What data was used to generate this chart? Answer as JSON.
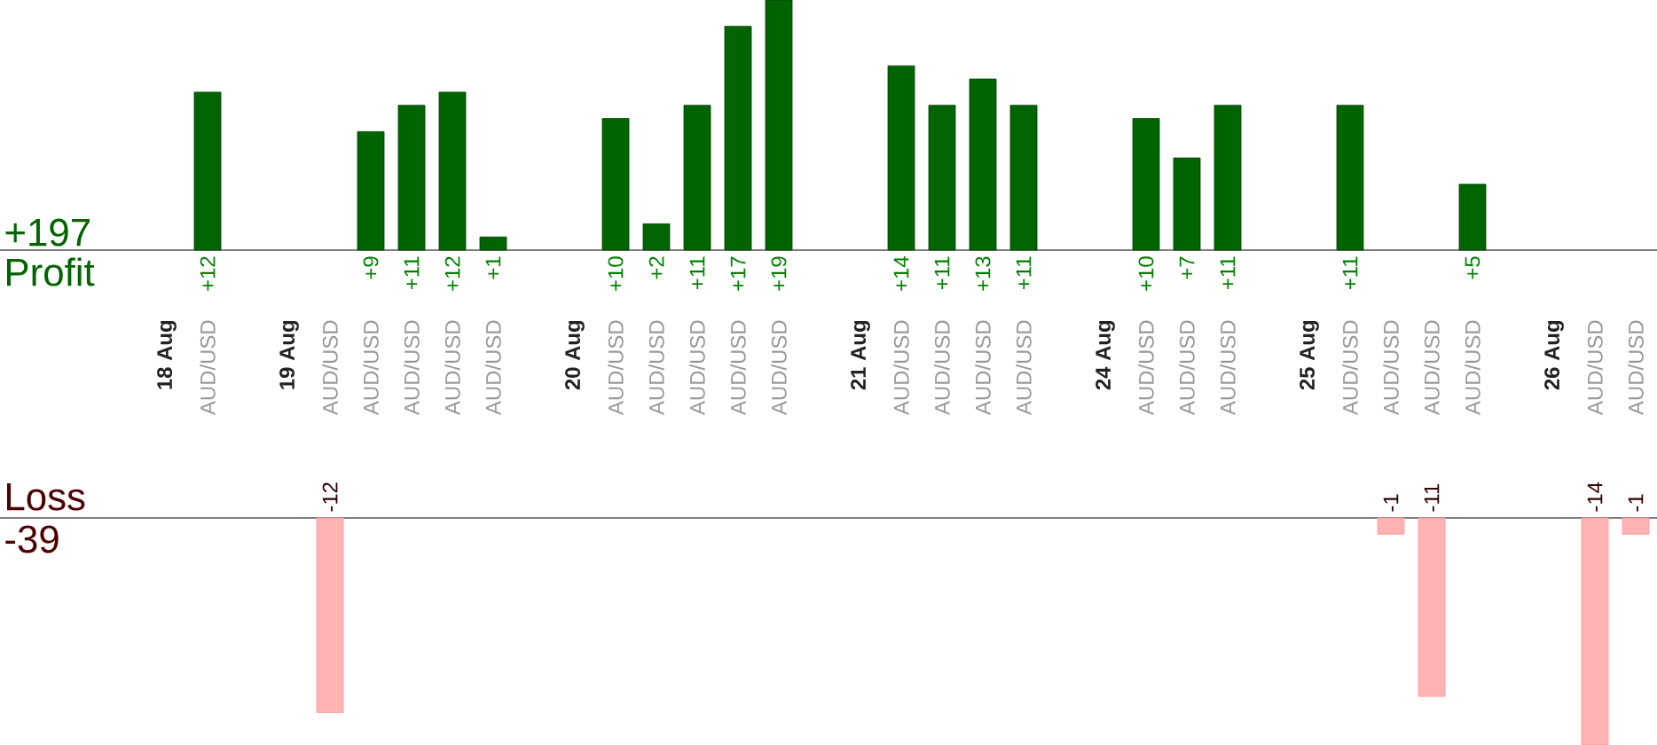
{
  "chart_data": [
    {
      "type": "bar",
      "title": "Profit",
      "annotations": [
        "+197"
      ],
      "tick_labels": "x",
      "color": "#006400",
      "categories": [
        "18 Aug",
        "AUD/USD",
        null,
        "19 Aug",
        "AUD/USD",
        "AUD/USD",
        "AUD/USD",
        "AUD/USD",
        "AUD/USD",
        null,
        "20 Aug",
        "AUD/USD",
        "AUD/USD",
        "AUD/USD",
        "AUD/USD",
        "AUD/USD",
        null,
        "21 Aug",
        "AUD/USD",
        "AUD/USD",
        "AUD/USD",
        "AUD/USD",
        null,
        "24 Aug",
        "AUD/USD",
        "AUD/USD",
        "AUD/USD",
        null,
        "25 Aug",
        "AUD/USD",
        "AUD/USD",
        "AUD/USD",
        "AUD/USD",
        null,
        "26 Aug",
        "AUD/USD",
        "AUD/USD"
      ],
      "values": [
        null,
        12,
        null,
        null,
        null,
        9,
        11,
        12,
        1,
        null,
        null,
        10,
        2,
        11,
        17,
        19,
        null,
        null,
        14,
        11,
        13,
        11,
        null,
        null,
        10,
        7,
        11,
        null,
        null,
        11,
        null,
        null,
        5,
        null,
        null,
        null,
        null
      ],
      "value_labels": [
        null,
        "+12",
        null,
        null,
        null,
        "+9",
        "+11",
        "+12",
        "+1",
        null,
        null,
        "+10",
        "+2",
        "+11",
        "+17",
        "+19",
        null,
        null,
        "+14",
        "+11",
        "+13",
        "+11",
        null,
        null,
        "+10",
        "+7",
        "+11",
        null,
        null,
        "+11",
        null,
        null,
        "+5",
        null,
        null,
        null,
        null
      ]
    },
    {
      "type": "bar",
      "title": "Loss",
      "annotations": [
        "-39"
      ],
      "tick_labels": false,
      "color": "#ffb3b3",
      "categories": [
        null,
        null,
        null,
        null,
        null,
        null,
        null,
        null,
        null,
        null,
        null,
        null,
        null,
        null,
        null,
        null,
        null,
        null,
        null,
        null,
        null,
        null,
        null,
        null,
        null,
        null,
        null,
        null,
        null,
        null,
        null,
        null,
        null,
        null,
        null,
        null,
        null
      ],
      "values": [
        null,
        null,
        null,
        null,
        -12,
        null,
        null,
        null,
        null,
        null,
        null,
        null,
        null,
        null,
        null,
        null,
        null,
        null,
        null,
        null,
        null,
        null,
        null,
        null,
        null,
        null,
        null,
        null,
        null,
        null,
        -1,
        -11,
        null,
        null,
        null,
        -14,
        -1
      ],
      "value_labels": [
        null,
        null,
        null,
        null,
        "-12",
        null,
        null,
        null,
        null,
        null,
        null,
        null,
        null,
        null,
        null,
        null,
        null,
        null,
        null,
        null,
        null,
        null,
        null,
        null,
        null,
        null,
        null,
        null,
        null,
        null,
        "-1",
        "-11",
        null,
        null,
        null,
        "-14",
        "-1"
      ]
    }
  ]
}
